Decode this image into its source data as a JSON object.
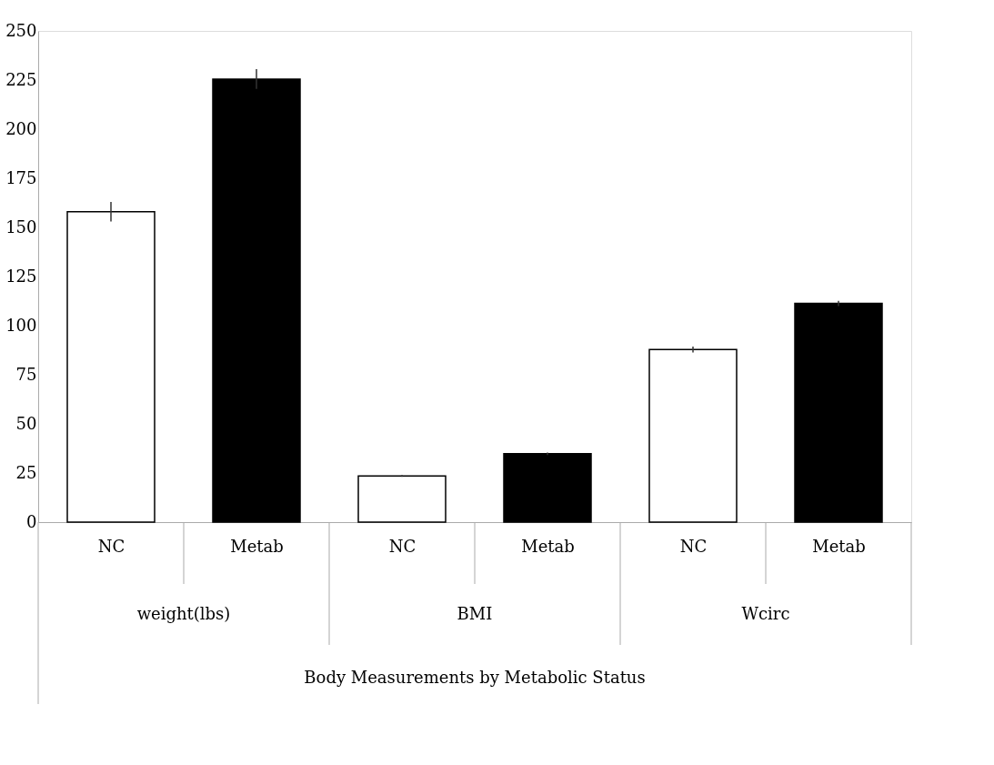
{
  "chart_data": {
    "type": "bar",
    "categories": [
      "NC",
      "Metab",
      "NC",
      "Metab",
      "NC",
      "Metab"
    ],
    "values": [
      158,
      225.5,
      23.5,
      34.8,
      87.8,
      111.3
    ],
    "errors": [
      5,
      5,
      0.5,
      0.6,
      1.5,
      1.3
    ],
    "colors": [
      "#ffffff",
      "#000000",
      "#ffffff",
      "#000000",
      "#ffffff",
      "#000000"
    ],
    "annotations": [
      "weight(lbs)",
      "BMI",
      "Wcirc",
      "Body Measurements by Metabolic Status"
    ],
    "ylim": [
      0,
      250
    ],
    "yticks": [
      0,
      25,
      50,
      75,
      100,
      125,
      150,
      175,
      200,
      225,
      250
    ],
    "grid": false
  }
}
